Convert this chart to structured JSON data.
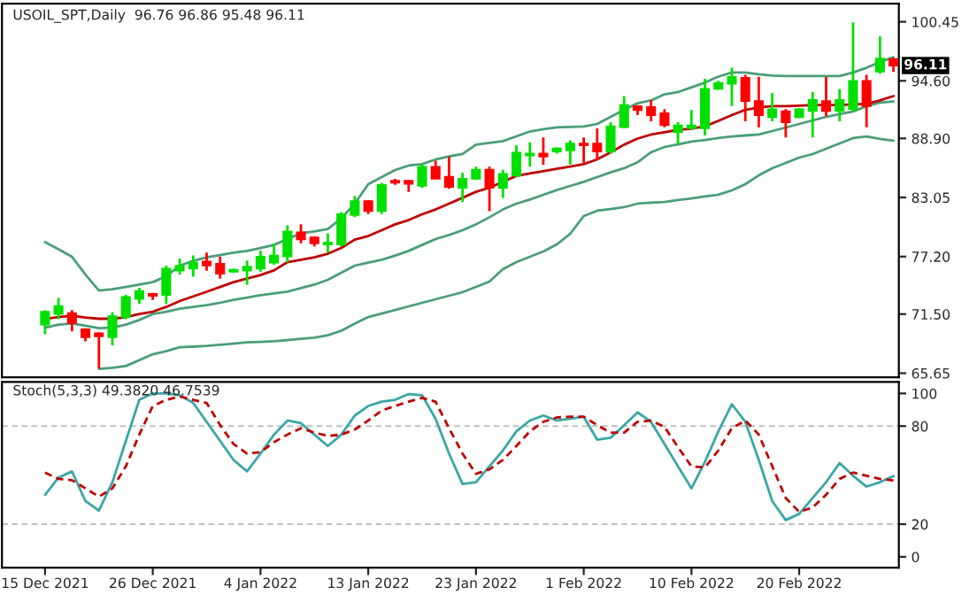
{
  "chart_data": [
    {
      "type": "candlestick",
      "title": "USOIL_SPT,Daily  96.76 96.86 95.48 96.11",
      "categories": [
        null,
        null,
        null,
        null,
        null,
        null,
        null,
        null,
        null,
        null,
        null,
        null,
        null,
        null,
        null,
        null,
        null,
        null,
        null,
        null,
        null,
        null,
        null,
        null,
        null,
        null,
        null,
        null,
        null,
        null,
        null,
        null,
        null,
        null,
        null,
        null,
        null,
        null,
        null,
        null,
        null,
        null,
        null,
        null,
        null,
        null,
        null,
        null,
        null,
        null,
        null,
        null,
        null,
        null,
        null,
        null,
        null,
        null,
        null,
        null,
        null,
        null,
        null,
        null
      ],
      "ohlc": [
        [
          70.46,
          71.9,
          69.5,
          71.74
        ],
        [
          71.5,
          73.1,
          71.0,
          72.3
        ],
        [
          71.6,
          71.9,
          69.8,
          70.6
        ],
        [
          70.0,
          70.1,
          68.8,
          69.2
        ],
        [
          69.6,
          69.7,
          66.1,
          69.3
        ],
        [
          69.2,
          71.7,
          68.4,
          71.3
        ],
        [
          71.2,
          73.4,
          71.0,
          73.2
        ],
        [
          73.0,
          74.1,
          72.5,
          73.8
        ],
        [
          73.5,
          73.6,
          72.9,
          73.3
        ],
        [
          73.4,
          76.3,
          72.5,
          76.0
        ],
        [
          75.8,
          77.0,
          75.4,
          76.3
        ],
        [
          76.0,
          77.3,
          75.2,
          76.6
        ],
        [
          76.7,
          77.6,
          75.8,
          76.3
        ],
        [
          76.5,
          77.2,
          75.0,
          75.5
        ],
        [
          75.7,
          76.0,
          75.6,
          75.9
        ],
        [
          75.8,
          76.8,
          74.4,
          76.2
        ],
        [
          76.0,
          77.8,
          75.7,
          77.2
        ],
        [
          76.6,
          78.5,
          76.4,
          77.3
        ],
        [
          77.2,
          80.3,
          76.6,
          79.7
        ],
        [
          79.6,
          80.4,
          78.5,
          78.9
        ],
        [
          79.1,
          79.2,
          78.2,
          78.5
        ],
        [
          78.4,
          79.5,
          77.6,
          78.6
        ],
        [
          78.4,
          81.6,
          78.2,
          81.4
        ],
        [
          81.3,
          83.2,
          81.1,
          82.7
        ],
        [
          82.7,
          82.8,
          81.4,
          81.7
        ],
        [
          81.7,
          84.5,
          81.4,
          84.3
        ],
        [
          84.7,
          84.9,
          84.3,
          84.5
        ],
        [
          84.7,
          84.8,
          83.6,
          84.4
        ],
        [
          84.2,
          86.3,
          84.0,
          86.1
        ],
        [
          86.1,
          86.7,
          84.9,
          84.9
        ],
        [
          85.1,
          87.1,
          83.9,
          84.1
        ],
        [
          84.0,
          85.5,
          82.6,
          84.9
        ],
        [
          84.9,
          86.1,
          84.8,
          85.8
        ],
        [
          85.8,
          86.1,
          81.7,
          84.0
        ],
        [
          84.0,
          85.8,
          83.0,
          85.4
        ],
        [
          85.2,
          88.2,
          85.1,
          87.5
        ],
        [
          87.2,
          88.5,
          86.1,
          87.4
        ],
        [
          87.4,
          89.0,
          86.3,
          87.1
        ],
        [
          87.6,
          88.0,
          87.4,
          87.9
        ],
        [
          87.7,
          88.7,
          86.3,
          88.4
        ],
        [
          88.4,
          89.0,
          86.5,
          88.2
        ],
        [
          88.4,
          89.9,
          86.8,
          87.6
        ],
        [
          87.6,
          90.5,
          87.4,
          90.1
        ],
        [
          90.0,
          93.1,
          89.9,
          92.2
        ],
        [
          92.1,
          92.2,
          91.2,
          91.7
        ],
        [
          92.0,
          92.7,
          90.6,
          91.2
        ],
        [
          91.4,
          91.8,
          90.0,
          90.2
        ],
        [
          89.5,
          90.5,
          88.3,
          90.2
        ],
        [
          89.9,
          91.7,
          89.8,
          90.2
        ],
        [
          89.9,
          94.8,
          89.2,
          93.8
        ],
        [
          93.8,
          94.6,
          93.7,
          94.4
        ],
        [
          94.3,
          95.9,
          92.1,
          95.0
        ],
        [
          94.9,
          95.2,
          90.6,
          92.6
        ],
        [
          92.6,
          95.0,
          90.0,
          91.2
        ],
        [
          91.0,
          93.4,
          90.6,
          91.8
        ],
        [
          91.6,
          91.8,
          89.0,
          90.5
        ],
        [
          91.0,
          91.9,
          90.9,
          91.8
        ],
        [
          91.6,
          93.5,
          89.0,
          92.7
        ],
        [
          92.6,
          95.0,
          91.1,
          91.6
        ],
        [
          91.6,
          93.8,
          90.6,
          92.7
        ],
        [
          91.8,
          100.4,
          91.5,
          94.6
        ],
        [
          94.6,
          95.2,
          90.0,
          92.1
        ],
        [
          95.5,
          99.0,
          95.3,
          96.8
        ],
        [
          96.76,
          96.86,
          95.48,
          96.11
        ]
      ],
      "colors": [
        "#00e000",
        "#00e000",
        "#ff0000",
        "#ff0000",
        "#ff0000",
        "#00e000",
        "#00e000",
        "#00e000",
        "#ff0000",
        "#00e000",
        "#00e000",
        "#00e000",
        "#ff0000",
        "#ff0000",
        "#00e000",
        "#00e000",
        "#00e000",
        "#00e000",
        "#00e000",
        "#ff0000",
        "#ff0000",
        "#00e000",
        "#00e000",
        "#00e000",
        "#ff0000",
        "#00e000",
        "#ff0000",
        "#ff0000",
        "#00e000",
        "#ff0000",
        "#ff0000",
        "#00e000",
        "#00e000",
        "#ff0000",
        "#00e000",
        "#00e000",
        "#00e000",
        "#ff0000",
        "#00e000",
        "#00e000",
        "#ff0000",
        "#ff0000",
        "#00e000",
        "#00e000",
        "#ff0000",
        "#ff0000",
        "#ff0000",
        "#00e000",
        "#00e000",
        "#00e000",
        "#00e000",
        "#00e000",
        "#ff0000",
        "#ff0000",
        "#00e000",
        "#ff0000",
        "#00e000",
        "#00e000",
        "#ff0000",
        "#00e000",
        "#00e000",
        "#ff0000",
        "#00e000",
        "#ff0000"
      ],
      "series": [
        {
          "type": "line",
          "color": "#4a9e78",
          "values": [
            78.63,
            77.93,
            77.18,
            75.42,
            73.84,
            73.97,
            74.19,
            74.42,
            74.67,
            75.25,
            76.3,
            76.77,
            77.12,
            77.35,
            77.58,
            77.75,
            78.05,
            78.35,
            78.93,
            79.51,
            79.68,
            79.93,
            80.98,
            82.44,
            84.37,
            85.07,
            85.77,
            86.21,
            86.35,
            86.82,
            87.12,
            87.35,
            88.28,
            88.45,
            88.63,
            89.1,
            89.58,
            89.81,
            89.98,
            90.03,
            90.07,
            90.33,
            91.03,
            91.73,
            92.38,
            92.66,
            93.26,
            93.49,
            93.96,
            94.42,
            95.02,
            95.42,
            95.42,
            95.24,
            95.12,
            95.07,
            95.07,
            95.07,
            95.07,
            95.07,
            95.42,
            95.89,
            96.47,
            96.94
          ]
        },
        {
          "type": "line",
          "color": "#4a9e78",
          "values": [
            70.16,
            70.46,
            70.56,
            70.34,
            70.11,
            70.16,
            70.46,
            70.92,
            71.51,
            71.74,
            72.04,
            72.21,
            72.39,
            72.62,
            72.92,
            73.14,
            73.37,
            73.55,
            73.72,
            74.07,
            74.42,
            74.9,
            75.6,
            76.3,
            76.6,
            76.88,
            77.3,
            77.76,
            78.35,
            78.93,
            79.33,
            79.81,
            80.39,
            81.09,
            81.86,
            82.44,
            82.84,
            83.32,
            83.79,
            84.19,
            84.6,
            85.07,
            85.54,
            85.95,
            86.53,
            87.53,
            88.05,
            88.31,
            88.58,
            88.75,
            88.93,
            89.1,
            89.19,
            89.28,
            89.63,
            89.98,
            90.33,
            90.68,
            91.03,
            91.3,
            91.56,
            92.09,
            92.44,
            92.56
          ]
        },
        {
          "type": "line",
          "color": "#4a9e78",
          "values": [
            null,
            null,
            null,
            null,
            66.07,
            66.18,
            66.36,
            66.95,
            67.53,
            67.83,
            68.23,
            68.28,
            68.35,
            68.46,
            68.58,
            68.7,
            68.76,
            68.81,
            68.93,
            69.06,
            69.16,
            69.41,
            69.86,
            70.56,
            71.21,
            71.56,
            71.91,
            72.27,
            72.62,
            72.97,
            73.32,
            73.67,
            74.19,
            74.72,
            75.95,
            76.65,
            77.18,
            77.7,
            78.4,
            79.46,
            81.21,
            81.74,
            81.91,
            82.09,
            82.44,
            82.53,
            82.61,
            82.79,
            82.96,
            83.14,
            83.32,
            83.75,
            84.37,
            85.24,
            85.95,
            86.47,
            87.0,
            87.35,
            87.88,
            88.4,
            88.93,
            89.1,
            88.84,
            88.67
          ]
        },
        {
          "type": "line",
          "color": "#c00000",
          "values": [
            71.04,
            71.21,
            71.34,
            71.16,
            71.04,
            71.04,
            71.21,
            71.51,
            71.74,
            72.21,
            72.79,
            73.26,
            73.72,
            74.19,
            74.67,
            75.02,
            75.37,
            75.83,
            76.65,
            76.88,
            77.12,
            77.48,
            78.05,
            78.88,
            79.23,
            79.81,
            80.39,
            80.81,
            81.39,
            81.86,
            82.44,
            83.02,
            83.61,
            84.02,
            84.6,
            85.19,
            85.42,
            85.65,
            85.89,
            86.12,
            86.35,
            86.82,
            87.53,
            88.28,
            88.88,
            89.28,
            89.51,
            89.75,
            89.86,
            90.1,
            90.63,
            91.21,
            91.73,
            91.96,
            92.09,
            92.09,
            92.14,
            92.21,
            92.21,
            92.21,
            92.26,
            92.31,
            92.66,
            93.09
          ]
        }
      ],
      "annotations": [
        {
          "text": "96.11",
          "y": 96.11
        }
      ],
      "ylim": [
        65.25,
        102.25
      ],
      "yticks": [
        65.65,
        {
          "value": 71.5,
          "label": "71.50"
        },
        {
          "value": 77.2,
          "label": "77.20"
        },
        83.05,
        {
          "value": 88.9,
          "label": "88.90"
        },
        {
          "value": 94.6,
          "label": "94.60"
        },
        100.45
      ],
      "tick_labels": "y"
    },
    {
      "type": "line",
      "title": "Stoch(5,3,3) 49.3820 46.7539",
      "categories": [
        "15 Dec 2021",
        null,
        null,
        null,
        null,
        null,
        null,
        null,
        "26 Dec 2021",
        null,
        null,
        null,
        null,
        null,
        null,
        null,
        "4 Jan 2022",
        null,
        null,
        null,
        null,
        null,
        null,
        null,
        "13 Jan 2022",
        null,
        null,
        null,
        null,
        null,
        null,
        null,
        "23 Jan 2022",
        null,
        null,
        null,
        null,
        null,
        null,
        null,
        "1 Feb 2022",
        null,
        null,
        null,
        null,
        null,
        null,
        null,
        "10 Feb 2022",
        null,
        null,
        null,
        null,
        null,
        null,
        null,
        "20 Feb 2022",
        null,
        null,
        null,
        null,
        null,
        null,
        null
      ],
      "series": [
        {
          "color": "#3aa6a6",
          "line_style": "solid",
          "values": [
            38.0,
            48.5,
            52.3,
            34.1,
            28.3,
            45.7,
            70.9,
            96.1,
            100,
            100,
            98.9,
            94.2,
            82.6,
            70.9,
            59.3,
            52.3,
            63.2,
            74.8,
            83.4,
            81.8,
            74.8,
            67.8,
            74.8,
            86.5,
            92.3,
            95.0,
            96.1,
            99.6,
            98.9,
            84.5,
            63.2,
            44.6,
            45.7,
            55.4,
            65.1,
            76.8,
            83.4,
            86.5,
            83.4,
            84.5,
            85.7,
            71.7,
            72.9,
            80.6,
            88.4,
            82.6,
            69.0,
            55.4,
            41.9,
            58.1,
            76.8,
            93.4,
            82.6,
            59.3,
            34.1,
            22.5,
            26.3,
            36.0,
            45.7,
            57.4,
            49.6,
            43.0,
            45.7,
            49.38
          ]
        },
        {
          "color": "#c00000",
          "line_style": "dashed",
          "values": [
            51.6,
            47.7,
            46.9,
            41.9,
            36.8,
            41.9,
            55.4,
            74.8,
            92.3,
            96.1,
            98.1,
            96.1,
            94.2,
            80.6,
            69.0,
            63.2,
            64.0,
            70.2,
            74.8,
            78.7,
            76.0,
            74.0,
            74.8,
            77.9,
            83.4,
            89.6,
            92.3,
            95.0,
            97.3,
            95.0,
            78.7,
            63.2,
            50.8,
            53.5,
            59.3,
            67.8,
            76.8,
            82.6,
            85.3,
            85.7,
            85.7,
            80.6,
            76.0,
            76.0,
            82.6,
            83.4,
            79.5,
            67.1,
            55.4,
            54.7,
            65.1,
            78.7,
            83.4,
            74.8,
            55.4,
            36.0,
            27.5,
            30.2,
            38.0,
            47.7,
            51.6,
            49.6,
            47.7,
            46.75
          ]
        }
      ],
      "ref_lines": [
        {
          "axis": "y",
          "value": 80,
          "color": "#c0c0c0",
          "line_style": "dashed"
        },
        {
          "axis": "y",
          "value": 20,
          "color": "#c0c0c0",
          "line_style": "dashed"
        }
      ],
      "ylim": [
        -6.6,
        107
      ],
      "yticks": [
        0,
        20,
        80,
        100
      ]
    }
  ]
}
